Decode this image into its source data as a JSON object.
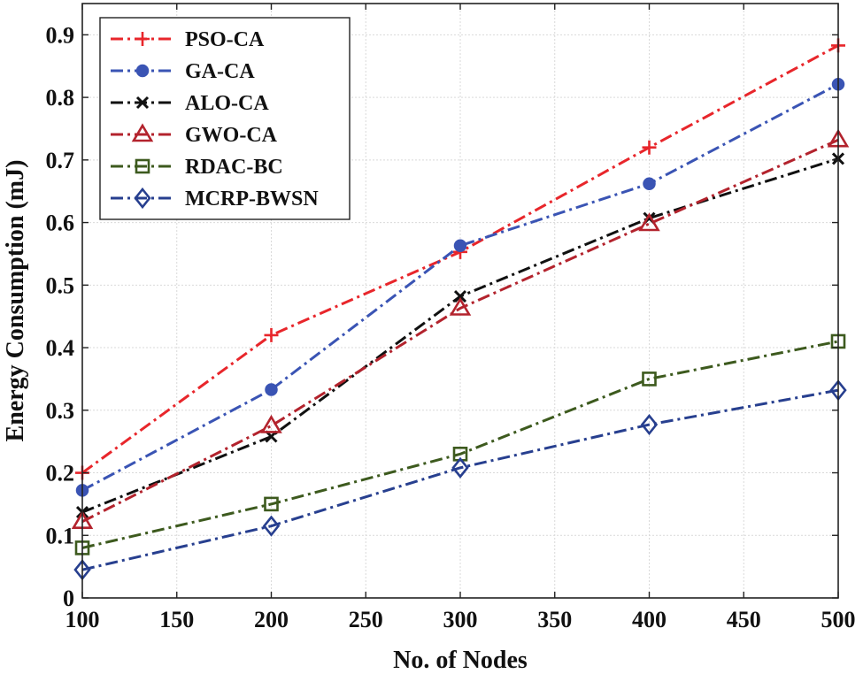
{
  "chart_data": {
    "type": "line",
    "title": "",
    "xlabel": "No. of Nodes",
    "ylabel": "Energy Consumption (mJ)",
    "x": [
      100,
      200,
      300,
      400,
      500
    ],
    "xlim": [
      100,
      500
    ],
    "ylim": [
      0,
      0.95
    ],
    "x_ticks": [
      100,
      150,
      200,
      250,
      300,
      350,
      400,
      450,
      500
    ],
    "y_ticks": [
      0,
      0.1,
      0.2,
      0.3,
      0.4,
      0.5,
      0.6,
      0.7,
      0.8,
      0.9
    ],
    "x_tick_labels": [
      "100",
      "150",
      "200",
      "250",
      "300",
      "350",
      "400",
      "450",
      "500"
    ],
    "y_tick_labels": [
      "0",
      "0.1",
      "0.2",
      "0.3",
      "0.4",
      "0.5",
      "0.6",
      "0.7",
      "0.8",
      "0.9"
    ],
    "grid": true,
    "legend_position": "top-left",
    "series": [
      {
        "name": "PSO-CA",
        "values": [
          0.2,
          0.42,
          0.553,
          0.72,
          0.883
        ],
        "color": "#e8262b",
        "marker": "plus"
      },
      {
        "name": "GA-CA",
        "values": [
          0.172,
          0.333,
          0.563,
          0.662,
          0.821
        ],
        "color": "#3a54b4",
        "marker": "filled-circle"
      },
      {
        "name": "ALO-CA",
        "values": [
          0.137,
          0.258,
          0.482,
          0.607,
          0.702
        ],
        "color": "#111111",
        "marker": "x"
      },
      {
        "name": "GWO-CA",
        "values": [
          0.122,
          0.275,
          0.463,
          0.598,
          0.732
        ],
        "color": "#b3232d",
        "marker": "triangle"
      },
      {
        "name": "RDAC-BC",
        "values": [
          0.08,
          0.15,
          0.23,
          0.35,
          0.41
        ],
        "color": "#3d5a1e",
        "marker": "square"
      },
      {
        "name": "MCRP-BWSN",
        "values": [
          0.045,
          0.115,
          0.208,
          0.277,
          0.332
        ],
        "color": "#273f8f",
        "marker": "diamond"
      }
    ]
  }
}
